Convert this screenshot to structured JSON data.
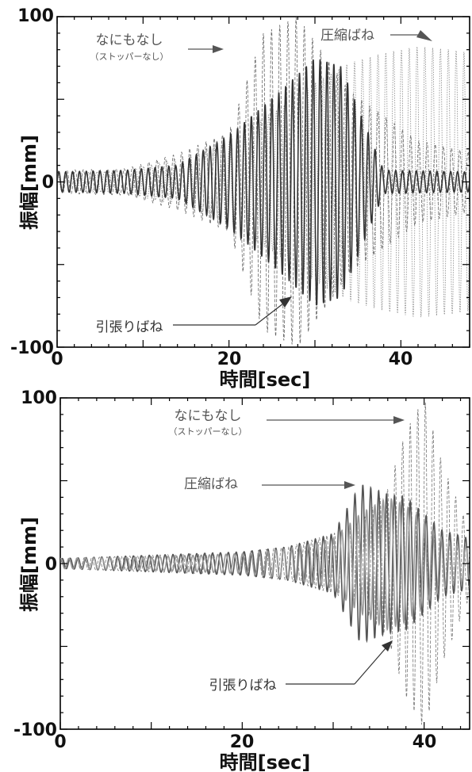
{
  "chart_data": [
    {
      "type": "line",
      "xlabel": "時間[sec]",
      "ylabel": "振幅[mm]",
      "xlim": [
        0,
        48
      ],
      "ylim": [
        -100,
        100
      ],
      "xticks": [
        "0",
        "20",
        "40"
      ],
      "yticks": [
        "-100",
        "0",
        "100"
      ],
      "series": [
        {
          "name": "なにもなし",
          "note": "（ストッパーなし）",
          "style": "dashed",
          "color": "#666666",
          "envelope": {
            "t": [
              0,
              8,
              14,
              20,
              24,
              28,
              34,
              38,
              42,
              48
            ],
            "amp": [
              7,
              8,
              17,
              30,
              90,
              100,
              55,
              40,
              25,
              18
            ]
          }
        },
        {
          "name": "圧縮ばね",
          "style": "dotted",
          "color": "#888888",
          "envelope": {
            "t": [
              0,
              8,
              14,
              20,
              26,
              30,
              34,
              38,
              42,
              46,
              48
            ],
            "amp": [
              5,
              7,
              14,
              25,
              45,
              60,
              72,
              78,
              82,
              80,
              78
            ]
          }
        },
        {
          "name": "引張りばね",
          "style": "solid",
          "color": "#333333",
          "envelope": {
            "t": [
              0,
              8,
              14,
              20,
              26,
              30,
              33,
              35,
              38,
              48
            ],
            "amp": [
              6,
              7,
              10,
              28,
              55,
              75,
              70,
              45,
              7,
              6
            ]
          }
        }
      ],
      "annotations": [
        {
          "text": "なにもなし",
          "sub": "（ストッパーなし）"
        },
        {
          "text": "圧縮ばね"
        },
        {
          "text": "引張りばね"
        }
      ]
    },
    {
      "type": "line",
      "xlabel": "時間[sec]",
      "ylabel": "振幅[mm]",
      "xlim": [
        0,
        45
      ],
      "ylim": [
        -100,
        100
      ],
      "xticks": [
        "0",
        "20",
        "40"
      ],
      "yticks": [
        "-100",
        "0",
        "100"
      ],
      "series": [
        {
          "name": "なにもなし",
          "note": "（ストッパーなし）",
          "style": "dashed",
          "color": "#777777",
          "envelope": {
            "t": [
              0,
              10,
              20,
              25,
              30,
              33,
              36,
              38,
              40,
              42,
              45
            ],
            "amp": [
              3,
              5,
              7,
              10,
              18,
              25,
              45,
              80,
              100,
              60,
              20
            ]
          }
        },
        {
          "name": "圧縮ばね",
          "style": "solid",
          "color": "#555555",
          "envelope": {
            "t": [
              0,
              10,
              20,
              25,
              30,
              33,
              36,
              38,
              40,
              42,
              45
            ],
            "amp": [
              3,
              5,
              7,
              10,
              18,
              48,
              42,
              40,
              30,
              20,
              15
            ]
          }
        },
        {
          "name": "引張りばね",
          "style": "solid",
          "color": "#999999",
          "envelope": {
            "t": [
              0,
              10,
              20,
              25,
              30,
              33,
              36,
              38,
              40,
              42,
              45
            ],
            "amp": [
              3,
              4,
              6,
              9,
              15,
              30,
              40,
              35,
              25,
              15,
              10
            ]
          }
        }
      ],
      "annotations": [
        {
          "text": "なにもなし",
          "sub": "（ストッパーなし）"
        },
        {
          "text": "圧縮ばね"
        },
        {
          "text": "引張りばね"
        }
      ]
    }
  ]
}
